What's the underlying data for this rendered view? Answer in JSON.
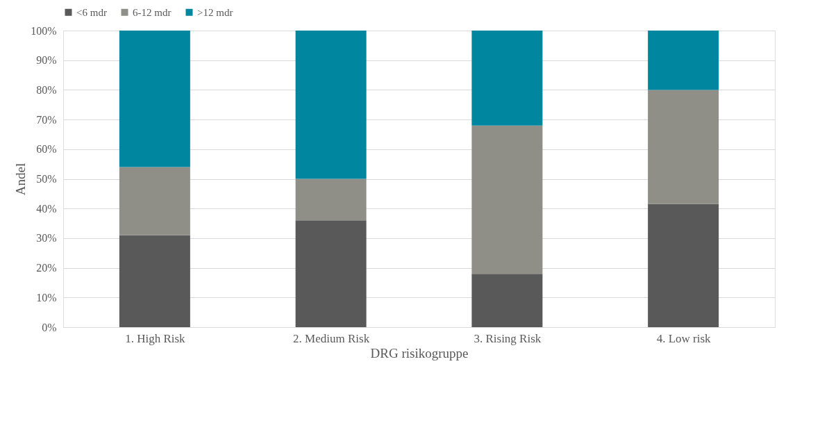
{
  "chart_data": {
    "type": "bar",
    "stacked": true,
    "xlabel": "DRG risikogruppe",
    "ylabel": "Andel",
    "categories": [
      "1. High Risk",
      "2. Medium Risk",
      "3. Rising Risk",
      "4. Low risk"
    ],
    "series": [
      {
        "name": "<6 mdr",
        "color": "#595959",
        "values": [
          31,
          36,
          18,
          41.5
        ]
      },
      {
        "name": "6-12 mdr",
        "color": "#8f8f88",
        "values": [
          23,
          14,
          50,
          38.5
        ]
      },
      {
        "name": ">12 mdr",
        "color": "#00869f",
        "values": [
          46,
          50,
          32,
          20
        ]
      }
    ],
    "ylim": [
      0,
      100
    ],
    "yticks": [
      {
        "value": 0,
        "label": "0%"
      },
      {
        "value": 10,
        "label": "10%"
      },
      {
        "value": 20,
        "label": "20%"
      },
      {
        "value": 30,
        "label": "30%"
      },
      {
        "value": 40,
        "label": "40%"
      },
      {
        "value": 50,
        "label": "50%"
      },
      {
        "value": 60,
        "label": "60%"
      },
      {
        "value": 70,
        "label": "70%"
      },
      {
        "value": 80,
        "label": "80%"
      },
      {
        "value": 90,
        "label": "90%"
      },
      {
        "value": 100,
        "label": "100%"
      }
    ],
    "grid": "y",
    "legend": "top"
  }
}
